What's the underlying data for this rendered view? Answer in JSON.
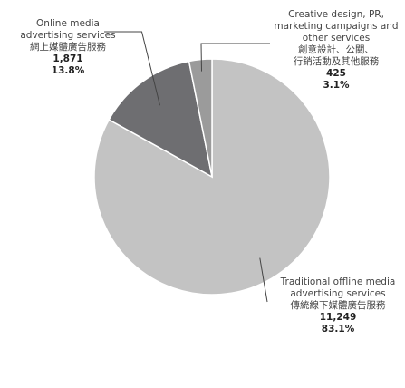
{
  "chart_data": {
    "type": "pie",
    "title": "",
    "slices": [
      {
        "label_en": "Traditional offline media advertising services",
        "label_zh": "傳統線下媒體廣告服務",
        "value": 11249,
        "value_label": "11,249",
        "percent_label": "83.1%",
        "color": "#c3c3c3"
      },
      {
        "label_en": "Online media advertising services",
        "label_zh": "網上媒體廣告服務",
        "value": 1871,
        "value_label": "1,871",
        "percent_label": "13.8%",
        "color": "#6e6e71"
      },
      {
        "label_en": "Creative design, PR, marketing campaigns and other services",
        "label_zh": "創意設計、公關、行銷活動及其他服務",
        "value": 425,
        "value_label": "425",
        "percent_label": "3.1%",
        "color": "#9b9b9b"
      }
    ],
    "labels": {
      "online": {
        "en_lines": [
          "Online media",
          "advertising services"
        ],
        "zh_lines": [
          "網上媒體廣告服務"
        ]
      },
      "creative": {
        "en_lines": [
          "Creative design, PR,",
          "marketing campaigns and",
          "other services"
        ],
        "zh_lines": [
          "創意設計、公關、",
          "行銷活動及其他服務"
        ]
      },
      "traditional": {
        "en_lines": [
          "Traditional offline media",
          "advertising services"
        ],
        "zh_lines": [
          "傳統線下媒體廣告服務"
        ]
      }
    },
    "leader_line_color": "#444444",
    "slice_border_color": "#ffffff"
  }
}
